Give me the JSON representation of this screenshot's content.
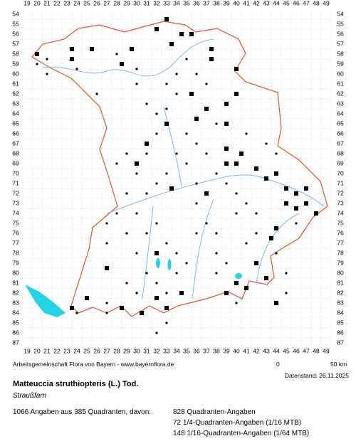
{
  "map": {
    "columns": [
      19,
      20,
      21,
      22,
      23,
      24,
      25,
      26,
      27,
      28,
      29,
      30,
      31,
      32,
      33,
      34,
      35,
      36,
      37,
      38,
      39,
      40,
      41,
      42,
      43,
      44,
      45,
      46,
      47,
      48,
      49
    ],
    "rows": [
      54,
      55,
      56,
      57,
      58,
      59,
      60,
      61,
      62,
      63,
      64,
      65,
      66,
      67,
      68,
      69,
      70,
      71,
      72,
      73,
      74,
      75,
      76,
      77,
      78,
      79,
      80,
      81,
      82,
      83,
      84,
      85,
      86,
      87
    ],
    "squares": [
      [
        20,
        58
      ],
      [
        23.5,
        57.5
      ],
      [
        23.5,
        58.5
      ],
      [
        25.5,
        57.5
      ],
      [
        28.5,
        59
      ],
      [
        29.5,
        57.5
      ],
      [
        32,
        55.5
      ],
      [
        33,
        54.5
      ],
      [
        33.5,
        57
      ],
      [
        34.5,
        56
      ],
      [
        35.5,
        56
      ],
      [
        37.5,
        57.5
      ],
      [
        37.5,
        58.5
      ],
      [
        40,
        59.5
      ],
      [
        40,
        62
      ],
      [
        39,
        63
      ],
      [
        37,
        63.5
      ],
      [
        36,
        64.5
      ],
      [
        35.5,
        62
      ],
      [
        33,
        65
      ],
      [
        39,
        65
      ],
      [
        39,
        67.5
      ],
      [
        39,
        69
      ],
      [
        40,
        69
      ],
      [
        40.5,
        68
      ],
      [
        42,
        69.5
      ],
      [
        43,
        70.5
      ],
      [
        44,
        70
      ],
      [
        45,
        71.5
      ],
      [
        46,
        72
      ],
      [
        47,
        71.5
      ],
      [
        45,
        73
      ],
      [
        46,
        73.5
      ],
      [
        47,
        73
      ],
      [
        48,
        74
      ],
      [
        44,
        75.5
      ],
      [
        43.5,
        76.5
      ],
      [
        32,
        78
      ],
      [
        27,
        79.5
      ],
      [
        25,
        82.5
      ],
      [
        23.5,
        83.5
      ],
      [
        28.5,
        83.5
      ],
      [
        30.5,
        84
      ],
      [
        32,
        82.5
      ],
      [
        33,
        83.5
      ],
      [
        34.5,
        82
      ],
      [
        39,
        82
      ],
      [
        40,
        81
      ],
      [
        41,
        81.5
      ],
      [
        42,
        79
      ],
      [
        43,
        80.5
      ],
      [
        44,
        83
      ],
      [
        31,
        67
      ],
      [
        30,
        69
      ],
      [
        33.5,
        71.5
      ],
      [
        37,
        72
      ]
    ],
    "dots": [
      [
        21,
        58.5
      ],
      [
        20,
        59
      ],
      [
        21,
        60
      ],
      [
        24,
        59.5
      ],
      [
        26,
        62
      ],
      [
        28,
        58
      ],
      [
        30,
        59.5
      ],
      [
        30,
        61
      ],
      [
        31,
        63
      ],
      [
        32,
        64
      ],
      [
        32,
        66
      ],
      [
        31,
        68
      ],
      [
        30,
        70
      ],
      [
        29,
        72
      ],
      [
        28,
        74
      ],
      [
        27,
        75
      ],
      [
        27,
        77
      ],
      [
        29,
        76
      ],
      [
        30,
        74
      ],
      [
        31,
        72
      ],
      [
        32,
        75
      ],
      [
        33,
        77
      ],
      [
        34,
        78
      ],
      [
        35,
        79
      ],
      [
        34,
        80
      ],
      [
        31,
        80
      ],
      [
        32,
        81
      ],
      [
        33,
        82
      ],
      [
        36,
        76
      ],
      [
        36,
        73
      ],
      [
        37,
        75
      ],
      [
        38,
        76
      ],
      [
        38,
        78
      ],
      [
        39,
        79
      ],
      [
        41,
        77
      ],
      [
        42,
        76
      ],
      [
        44,
        78
      ],
      [
        45,
        80
      ],
      [
        46,
        75
      ],
      [
        44,
        68
      ],
      [
        43,
        67
      ],
      [
        41,
        66
      ],
      [
        38,
        65
      ],
      [
        37,
        61
      ],
      [
        36,
        60
      ],
      [
        35,
        58.5
      ],
      [
        34,
        60
      ],
      [
        33,
        61
      ],
      [
        34,
        62
      ],
      [
        33,
        63.5
      ],
      [
        35,
        66
      ],
      [
        36,
        67
      ],
      [
        37,
        68
      ],
      [
        38,
        70
      ],
      [
        39,
        71
      ],
      [
        40,
        72
      ],
      [
        41,
        73
      ],
      [
        42,
        74
      ],
      [
        40,
        74
      ],
      [
        36,
        71
      ],
      [
        35,
        69
      ],
      [
        34,
        68
      ],
      [
        33,
        70
      ],
      [
        32,
        71
      ],
      [
        29,
        68
      ],
      [
        28,
        69
      ],
      [
        29,
        81
      ],
      [
        30,
        82
      ],
      [
        27,
        83
      ],
      [
        32,
        86
      ],
      [
        33,
        85
      ],
      [
        27,
        84
      ],
      [
        24,
        84
      ],
      [
        38,
        80
      ],
      [
        40,
        83
      ],
      [
        45,
        82
      ],
      [
        30,
        78
      ],
      [
        31,
        76
      ]
    ]
  },
  "credit": "Arbeitsgemeinschaft Flora von Bayern - www.bayernflora.de",
  "scale": {
    "start": "0",
    "end": "50 km"
  },
  "date": "Datenstand: 26.11.2025",
  "title": "Matteuccia struthiopteris (L.) Tod.",
  "common_name": "Straußfarn",
  "summary": "1066 Angaben aus 385 Quadranten, davon:",
  "breakdown": [
    "828 Quadranten-Angaben",
    "72 1/4-Quadranten-Angaben (1/16 MTB)",
    "148 1/16-Quadranten-Angaben (1/64 MTB)"
  ]
}
